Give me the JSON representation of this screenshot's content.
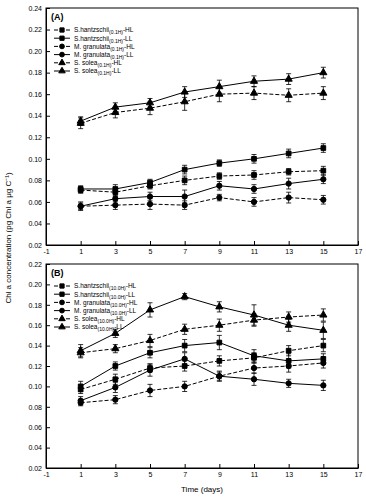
{
  "chart_data": [
    {
      "type": "line",
      "title": "(A)",
      "y_label": "Chl a concentration (pg Chl a μg C⁻¹)",
      "x": [
        1,
        3,
        5,
        7,
        9,
        11,
        13,
        15
      ],
      "xlim": [
        -1,
        17
      ],
      "xticks": [
        -1,
        1,
        3,
        5,
        7,
        9,
        11,
        13,
        15,
        17
      ],
      "ylim": [
        0.02,
        0.24
      ],
      "yticks": [
        0.02,
        0.04,
        0.06,
        0.08,
        {
          "value": 0.1,
          "label": "0.10"
        },
        0.12,
        0.14,
        0.16,
        0.18,
        {
          "value": 0.2,
          "label": "0.20"
        },
        0.22,
        0.24
      ],
      "legend": "upper left",
      "grid": false,
      "series": [
        {
          "name": "S.hantzschii(0.1H)-HL",
          "color": "#000000",
          "marker": "square",
          "line_style": "dashed",
          "values": [
            0.071,
            0.069,
            0.075,
            0.08,
            0.084,
            0.085,
            0.088,
            0.089
          ],
          "errors": [
            0.003,
            0.004,
            0.003,
            0.004,
            0.003,
            0.004,
            0.003,
            0.004
          ]
        },
        {
          "name": "S.hantzschii(0.1H)-LL",
          "color": "#000000",
          "marker": "square",
          "line_style": "solid",
          "values": [
            0.072,
            0.072,
            0.078,
            0.09,
            0.096,
            0.1,
            0.105,
            0.11
          ],
          "errors": [
            0.003,
            0.004,
            0.003,
            0.004,
            0.003,
            0.004,
            0.004,
            0.004
          ]
        },
        {
          "name": "M. granulata(0.1H)-HL",
          "color": "#000000",
          "marker": "circle",
          "line_style": "dashed",
          "values": [
            0.056,
            0.057,
            0.058,
            0.057,
            0.064,
            0.06,
            0.064,
            0.062
          ],
          "errors": [
            0.003,
            0.004,
            0.005,
            0.004,
            0.003,
            0.004,
            0.005,
            0.004
          ]
        },
        {
          "name": "M. granulata(0.1H)-LL",
          "color": "#000000",
          "marker": "circle",
          "line_style": "solid",
          "values": [
            0.056,
            0.063,
            0.065,
            0.065,
            0.075,
            0.072,
            0.077,
            0.081
          ],
          "errors": [
            0.004,
            0.003,
            0.004,
            0.006,
            0.004,
            0.004,
            0.005,
            0.004
          ]
        },
        {
          "name": "S. solea(0.1H)-HL",
          "color": "#000000",
          "marker": "triangle",
          "line_style": "dashed",
          "values": [
            0.133,
            0.143,
            0.147,
            0.153,
            0.16,
            0.161,
            0.159,
            0.161
          ],
          "errors": [
            0.005,
            0.005,
            0.006,
            0.008,
            0.007,
            0.006,
            0.006,
            0.006
          ]
        },
        {
          "name": "S. solea(0.1H)-LL",
          "color": "#000000",
          "marker": "triangle",
          "line_style": "solid",
          "values": [
            0.135,
            0.148,
            0.152,
            0.162,
            0.167,
            0.172,
            0.174,
            0.18
          ],
          "errors": [
            0.004,
            0.004,
            0.004,
            0.005,
            0.006,
            0.005,
            0.005,
            0.005
          ]
        }
      ]
    },
    {
      "type": "line",
      "title": "(B)",
      "x_label": "Time (days)",
      "x": [
        1,
        3,
        5,
        7,
        9,
        11,
        13,
        15
      ],
      "xlim": [
        -1,
        17
      ],
      "xticks": [
        -1,
        1,
        3,
        5,
        7,
        9,
        11,
        13,
        15,
        17
      ],
      "ylim": [
        0.02,
        0.22
      ],
      "yticks": [
        0.02,
        0.04,
        0.06,
        0.08,
        {
          "value": 0.1,
          "label": "0.10"
        },
        0.12,
        0.14,
        0.16,
        0.18,
        {
          "value": 0.2,
          "label": "0.20"
        },
        0.22
      ],
      "legend": "upper left",
      "grid": false,
      "series": [
        {
          "name": "S.hantzschii(10.0H)-HL",
          "color": "#000000",
          "marker": "square",
          "line_style": "dashed",
          "values": [
            0.097,
            0.107,
            0.118,
            0.12,
            0.125,
            0.128,
            0.135,
            0.14
          ],
          "errors": [
            0.004,
            0.005,
            0.004,
            0.005,
            0.005,
            0.005,
            0.005,
            0.006
          ]
        },
        {
          "name": "S.hantzschii(10.0H)-LL",
          "color": "#000000",
          "marker": "square",
          "line_style": "solid",
          "values": [
            0.1,
            0.12,
            0.133,
            0.14,
            0.143,
            0.13,
            0.125,
            0.127
          ],
          "errors": [
            0.005,
            0.004,
            0.005,
            0.006,
            0.007,
            0.006,
            0.007,
            0.005
          ]
        },
        {
          "name": "M. granulata(10.0H)-HL",
          "color": "#000000",
          "marker": "circle",
          "line_style": "dashed",
          "values": [
            0.084,
            0.087,
            0.096,
            0.1,
            0.11,
            0.118,
            0.12,
            0.123
          ],
          "errors": [
            0.003,
            0.004,
            0.006,
            0.005,
            0.004,
            0.005,
            0.006,
            0.005
          ]
        },
        {
          "name": "M. granulata(10.0H)-LL",
          "color": "#000000",
          "marker": "circle",
          "line_style": "solid",
          "values": [
            0.086,
            0.099,
            0.116,
            0.127,
            0.11,
            0.107,
            0.103,
            0.101
          ],
          "errors": [
            0.004,
            0.005,
            0.006,
            0.006,
            0.005,
            0.006,
            0.004,
            0.005
          ]
        },
        {
          "name": "S. solea(10.0H)-HL",
          "color": "#000000",
          "marker": "triangle",
          "line_style": "dashed",
          "values": [
            0.133,
            0.137,
            0.145,
            0.156,
            0.16,
            0.165,
            0.168,
            0.17
          ],
          "errors": [
            0.005,
            0.004,
            0.006,
            0.005,
            0.006,
            0.006,
            0.005,
            0.006
          ]
        },
        {
          "name": "S. solea(10.0H)-LL",
          "color": "#000000",
          "marker": "triangle",
          "line_style": "solid",
          "values": [
            0.135,
            0.152,
            0.175,
            0.188,
            0.178,
            0.17,
            0.16,
            0.155
          ],
          "errors": [
            0.006,
            0.004,
            0.007,
            0.003,
            0.005,
            0.01,
            0.006,
            0.008
          ]
        }
      ]
    }
  ]
}
